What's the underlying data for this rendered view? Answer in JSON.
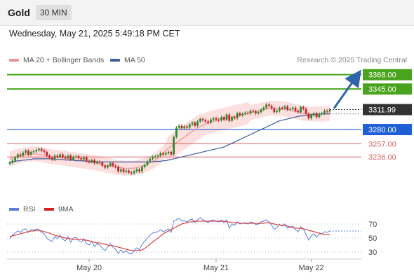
{
  "header": {
    "title": "Gold",
    "timeframe": "30 MIN",
    "date": "Wednesday, May 21, 2025 5:49:18 PM CET"
  },
  "legend": {
    "ma20_label": "MA 20 + Bollinger Bands",
    "ma50_label": "MA 50",
    "credit": "Research © 2025 Trading Central"
  },
  "rsi_legend": {
    "rsi_label": "RSI",
    "ma_label": "9MA"
  },
  "colors": {
    "up_candle": "#2d8a2d",
    "down_candle": "#c8232c",
    "ma20": "#f09090",
    "ma50": "#3a5f9e",
    "bollinger_fill": "#fbd9d9",
    "resistance": "#4aa31c",
    "support_blue": "#1f5fd6",
    "support_red": "#e06060",
    "arrow": "#2e64a8",
    "rsi": "#5a7fd8",
    "rsi_ma": "#d92222"
  },
  "chart_data": [
    {
      "type": "candlestick",
      "title": "Gold",
      "ylim": [
        3170,
        3380
      ],
      "x_ticks": [
        {
          "index": 30,
          "label": "May 20"
        },
        {
          "index": 78,
          "label": "May 21"
        },
        {
          "index": 114,
          "label": "May 22"
        }
      ],
      "current_price": 3311.99,
      "current_price_label": "3311.99",
      "levels": [
        {
          "price": 3368.0,
          "label": "3368.00",
          "kind": "resistance"
        },
        {
          "price": 3345.0,
          "label": "3345.00",
          "kind": "resistance"
        },
        {
          "price": 3280.0,
          "label": "3280.00",
          "kind": "support_blue"
        },
        {
          "price": 3257.0,
          "label": "3257.00",
          "kind": "support_red"
        },
        {
          "price": 3236.0,
          "label": "3236.00",
          "kind": "support_red"
        }
      ],
      "ohlc_close": [
        3227,
        3230,
        3235,
        3240,
        3238,
        3243,
        3246,
        3240,
        3244,
        3245,
        3247,
        3249,
        3246,
        3244,
        3238,
        3235,
        3232,
        3238,
        3236,
        3240,
        3236,
        3234,
        3238,
        3232,
        3236,
        3237,
        3234,
        3232,
        3235,
        3230,
        3228,
        3231,
        3226,
        3228,
        3227,
        3222,
        3219,
        3222,
        3226,
        3222,
        3220,
        3213,
        3216,
        3212,
        3214,
        3211,
        3210,
        3213,
        3216,
        3213,
        3220,
        3223,
        3229,
        3233,
        3236,
        3237,
        3238,
        3242,
        3240,
        3242,
        3244,
        3240,
        3268,
        3283,
        3286,
        3282,
        3285,
        3283,
        3288,
        3291,
        3286,
        3293,
        3297,
        3295,
        3293,
        3291,
        3296,
        3298,
        3296,
        3295,
        3300,
        3296,
        3304,
        3294,
        3300,
        3298,
        3306,
        3303,
        3305,
        3307,
        3306,
        3310,
        3309,
        3306,
        3308,
        3312,
        3315,
        3320,
        3318,
        3314,
        3308,
        3310,
        3315,
        3314,
        3317,
        3312,
        3313,
        3315,
        3310,
        3308,
        3316,
        3313,
        3305,
        3298,
        3303,
        3306,
        3300,
        3305,
        3306,
        3310,
        3309,
        3312
      ],
      "ma20": [
        3232,
        3234,
        3236,
        3237,
        3238,
        3239,
        3240,
        3240,
        3241,
        3241,
        3241,
        3240,
        3240,
        3239,
        3238,
        3237,
        3236,
        3236,
        3235,
        3235,
        3234,
        3234,
        3233,
        3232,
        3232,
        3231,
        3230,
        3230,
        3229,
        3229,
        3228,
        3227,
        3227,
        3226,
        3225,
        3224,
        3223,
        3222,
        3222,
        3221,
        3220,
        3219,
        3219,
        3218,
        3218,
        3218,
        3218,
        3218,
        3219,
        3220,
        3221,
        3223,
        3225,
        3227,
        3229,
        3231,
        3234,
        3238,
        3242,
        3246,
        3250,
        3253,
        3256,
        3259,
        3262,
        3265,
        3268,
        3271,
        3274,
        3277,
        3280,
        3283,
        3285,
        3287,
        3289,
        3291,
        3292,
        3293,
        3294,
        3295,
        3296,
        3297,
        3298,
        3299,
        3300,
        3301,
        3302,
        3303,
        3304,
        3305,
        3306,
        3307,
        3308,
        3309,
        3310,
        3311,
        3312,
        3313,
        3314,
        3314,
        3314,
        3314,
        3314,
        3313,
        3313,
        3312,
        3311,
        3310,
        3309,
        3308,
        3307,
        3306,
        3306,
        3305,
        3305,
        3305,
        3305,
        3305,
        3305,
        3305,
        3306,
        3306
      ],
      "ma50": [
        3227,
        3228,
        3229,
        3230,
        3230,
        3231,
        3231,
        3232,
        3232,
        3233,
        3233,
        3233,
        3233,
        3233,
        3233,
        3233,
        3233,
        3232,
        3232,
        3232,
        3232,
        3231,
        3231,
        3231,
        3231,
        3230,
        3230,
        3230,
        3230,
        3229,
        3229,
        3229,
        3229,
        3228,
        3228,
        3228,
        3228,
        3228,
        3228,
        3228,
        3228,
        3228,
        3228,
        3228,
        3228,
        3228,
        3228,
        3228,
        3228,
        3228,
        3228,
        3228,
        3228,
        3228,
        3228,
        3229,
        3229,
        3229,
        3230,
        3230,
        3231,
        3232,
        3233,
        3234,
        3235,
        3236,
        3237,
        3238,
        3239,
        3240,
        3241,
        3242,
        3243,
        3244,
        3245,
        3246,
        3247,
        3248,
        3249,
        3250,
        3251,
        3252,
        3254,
        3256,
        3258,
        3260,
        3262,
        3264,
        3266,
        3268,
        3270,
        3272,
        3274,
        3276,
        3278,
        3280,
        3282,
        3284,
        3286,
        3288,
        3290,
        3292,
        3294,
        3295,
        3296,
        3297,
        3298,
        3299,
        3300,
        3301,
        3302,
        3302,
        3303,
        3303,
        3304,
        3304,
        3304,
        3305,
        3305,
        3305,
        3305,
        3305
      ],
      "forecast_target": 3368.0
    },
    {
      "type": "line",
      "title": "RSI",
      "ylim": [
        20,
        80
      ],
      "y_ticks": [
        70,
        50,
        30
      ],
      "series": [
        {
          "name": "RSI",
          "values": [
            49,
            54,
            57,
            60,
            58,
            62,
            63,
            58,
            62,
            61,
            63,
            62,
            58,
            56,
            50,
            47,
            45,
            52,
            49,
            54,
            48,
            46,
            52,
            44,
            50,
            51,
            46,
            44,
            49,
            42,
            40,
            45,
            38,
            42,
            40,
            35,
            32,
            37,
            42,
            37,
            34,
            28,
            33,
            29,
            32,
            28,
            27,
            32,
            36,
            33,
            41,
            45,
            50,
            54,
            57,
            58,
            59,
            62,
            59,
            61,
            63,
            58,
            75,
            76,
            78,
            74,
            75,
            73,
            76,
            77,
            72,
            76,
            79,
            76,
            74,
            72,
            75,
            76,
            74,
            73,
            76,
            72,
            76,
            64,
            70,
            68,
            73,
            70,
            71,
            72,
            70,
            73,
            72,
            69,
            70,
            73,
            74,
            76,
            73,
            68,
            62,
            65,
            69,
            67,
            70,
            64,
            65,
            67,
            62,
            59,
            66,
            63,
            55,
            47,
            53,
            56,
            51,
            56,
            56,
            59,
            58,
            60
          ]
        },
        {
          "name": "9MA",
          "values": [
            52,
            53,
            54,
            55,
            56,
            57,
            58,
            59,
            60,
            60,
            61,
            61,
            60,
            59,
            58,
            57,
            55,
            54,
            53,
            52,
            51,
            50,
            49,
            49,
            48,
            48,
            48,
            48,
            47,
            47,
            46,
            45,
            44,
            43,
            43,
            42,
            41,
            40,
            39,
            39,
            38,
            37,
            36,
            35,
            34,
            33,
            32,
            32,
            32,
            32,
            33,
            35,
            38,
            41,
            44,
            47,
            50,
            53,
            56,
            58,
            60,
            62,
            64,
            66,
            68,
            70,
            71,
            72,
            73,
            73,
            74,
            74,
            74,
            74,
            74,
            74,
            74,
            74,
            74,
            74,
            74,
            74,
            73,
            73,
            72,
            72,
            72,
            71,
            71,
            71,
            71,
            71,
            71,
            71,
            71,
            71,
            71,
            72,
            72,
            71,
            70,
            69,
            69,
            68,
            68,
            67,
            66,
            65,
            64,
            64,
            64,
            63,
            62,
            61,
            60,
            59,
            58,
            57,
            56,
            55,
            55,
            55
          ]
        }
      ]
    }
  ]
}
